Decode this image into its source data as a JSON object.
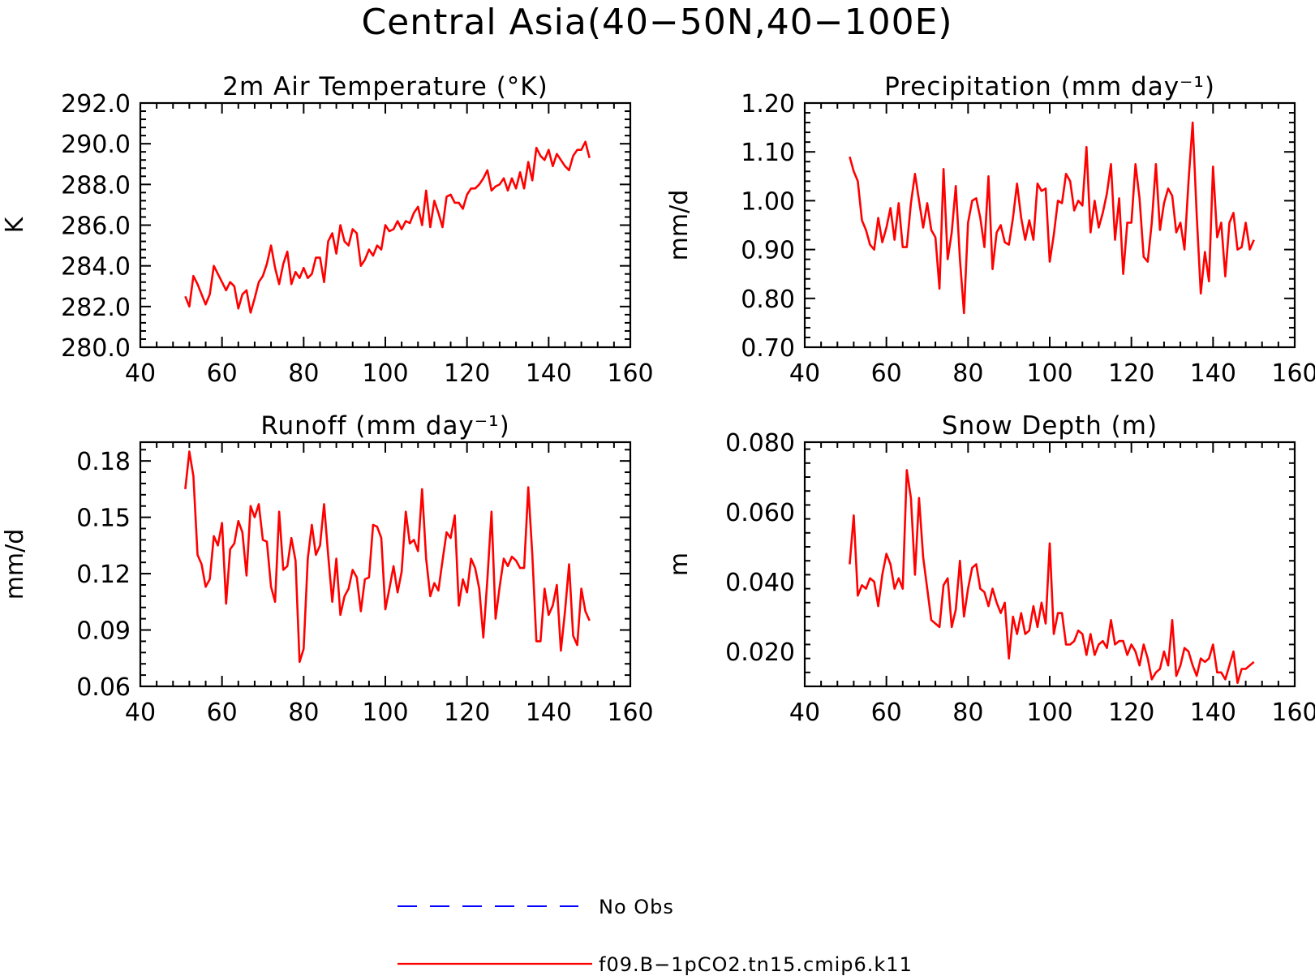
{
  "title": "Central Asia(40−50N,40−100E)",
  "legend": [
    {
      "label": "No Obs",
      "color": "#0000ff",
      "style": "dashed"
    },
    {
      "label": "f09.B−1pCO2.tn15.cmip6.k11",
      "color": "#ff0000",
      "style": "solid"
    }
  ],
  "chart_data": [
    {
      "type": "line",
      "title": "2m Air Temperature (°K)",
      "xlabel": "",
      "ylabel": "K",
      "xlim": [
        40,
        160
      ],
      "ylim": [
        280,
        292
      ],
      "xticks": [
        40,
        60,
        80,
        100,
        120,
        140,
        160
      ],
      "yticks": [
        280,
        282,
        284,
        286,
        288,
        290,
        292
      ],
      "yticklabels": [
        "280.0",
        "282.0",
        "284.0",
        "286.0",
        "288.0",
        "290.0",
        "292.0"
      ],
      "x_start": 51,
      "series": [
        {
          "name": "f09.B−1pCO2.tn15.cmip6.k11",
          "color": "#ff0000",
          "values": [
            282.5,
            282.0,
            283.5,
            283.1,
            282.6,
            282.1,
            282.6,
            284.0,
            283.6,
            283.2,
            282.8,
            283.2,
            283.0,
            281.9,
            282.6,
            282.8,
            281.7,
            282.4,
            283.2,
            283.5,
            284.1,
            285.0,
            283.9,
            283.1,
            284.1,
            284.7,
            283.1,
            283.7,
            283.4,
            283.9,
            283.4,
            283.6,
            284.4,
            284.4,
            283.2,
            285.2,
            285.6,
            284.6,
            286.0,
            285.2,
            285.0,
            285.8,
            285.6,
            284.0,
            284.3,
            284.8,
            284.5,
            285.0,
            284.8,
            286.0,
            285.7,
            285.8,
            286.2,
            285.8,
            286.2,
            286.1,
            286.6,
            286.9,
            286.0,
            287.7,
            285.9,
            287.2,
            286.6,
            285.9,
            287.4,
            287.5,
            287.1,
            287.1,
            286.8,
            287.5,
            287.8,
            287.8,
            288.0,
            288.3,
            288.7,
            287.7,
            287.9,
            288.0,
            288.3,
            287.7,
            288.3,
            287.8,
            288.6,
            287.8,
            289.1,
            288.2,
            289.8,
            289.4,
            289.2,
            289.7,
            288.9,
            289.5,
            289.2,
            288.9,
            288.7,
            289.4,
            289.7,
            289.7,
            290.1,
            289.3
          ]
        }
      ]
    },
    {
      "type": "line",
      "title": "Precipitation (mm day⁻¹)",
      "xlabel": "",
      "ylabel": "mm/d",
      "xlim": [
        40,
        160
      ],
      "ylim": [
        0.7,
        1.2
      ],
      "xticks": [
        40,
        60,
        80,
        100,
        120,
        140,
        160
      ],
      "yticks": [
        0.7,
        0.8,
        0.9,
        1.0,
        1.1,
        1.2
      ],
      "yticklabels": [
        "0.70",
        "0.80",
        "0.90",
        "1.00",
        "1.10",
        "1.20"
      ],
      "x_start": 51,
      "series": [
        {
          "name": "f09.B−1pCO2.tn15.cmip6.k11",
          "color": "#ff0000",
          "values": [
            1.09,
            1.06,
            1.04,
            0.96,
            0.94,
            0.91,
            0.9,
            0.965,
            0.915,
            0.945,
            0.985,
            0.92,
            0.995,
            0.905,
            0.905,
            0.995,
            1.055,
            1.0,
            0.945,
            0.995,
            0.94,
            0.925,
            0.82,
            1.065,
            0.88,
            0.935,
            1.03,
            0.88,
            0.77,
            0.955,
            1.0,
            1.005,
            0.965,
            0.905,
            1.05,
            0.86,
            0.935,
            0.95,
            0.915,
            0.91,
            0.965,
            1.035,
            0.965,
            0.92,
            0.96,
            0.92,
            1.035,
            1.02,
            1.025,
            0.875,
            0.93,
            1.0,
            0.995,
            1.055,
            1.04,
            0.98,
            1.0,
            0.99,
            1.11,
            0.935,
            1.0,
            0.945,
            0.975,
            1.015,
            1.075,
            0.92,
            1.005,
            0.85,
            0.955,
            0.955,
            1.075,
            1.005,
            0.885,
            0.875,
            0.955,
            1.075,
            0.94,
            0.995,
            1.025,
            1.01,
            0.935,
            0.955,
            0.9,
            1.04,
            1.16,
            0.97,
            0.81,
            0.895,
            0.835,
            1.07,
            0.925,
            0.955,
            0.845,
            0.955,
            0.975,
            0.9,
            0.905,
            0.955,
            0.9,
            0.92
          ]
        }
      ]
    },
    {
      "type": "line",
      "title": "Runoff (mm day⁻¹)",
      "xlabel": "",
      "ylabel": "mm/d",
      "xlim": [
        40,
        160
      ],
      "ylim": [
        0.06,
        0.19
      ],
      "xticks": [
        40,
        60,
        80,
        100,
        120,
        140,
        160
      ],
      "yticks": [
        0.06,
        0.09,
        0.12,
        0.15,
        0.18
      ],
      "yticklabels": [
        "0.06",
        "0.09",
        "0.12",
        "0.15",
        "0.18"
      ],
      "x_start": 51,
      "series": [
        {
          "name": "f09.B−1pCO2.tn15.cmip6.k11",
          "color": "#ff0000",
          "values": [
            0.165,
            0.185,
            0.172,
            0.13,
            0.125,
            0.113,
            0.117,
            0.14,
            0.135,
            0.147,
            0.104,
            0.133,
            0.136,
            0.148,
            0.142,
            0.119,
            0.156,
            0.15,
            0.157,
            0.138,
            0.137,
            0.113,
            0.105,
            0.153,
            0.122,
            0.124,
            0.139,
            0.127,
            0.073,
            0.08,
            0.128,
            0.146,
            0.13,
            0.135,
            0.157,
            0.13,
            0.105,
            0.128,
            0.098,
            0.108,
            0.112,
            0.122,
            0.118,
            0.1,
            0.117,
            0.118,
            0.146,
            0.145,
            0.139,
            0.101,
            0.112,
            0.124,
            0.11,
            0.121,
            0.153,
            0.136,
            0.138,
            0.132,
            0.165,
            0.128,
            0.108,
            0.115,
            0.111,
            0.127,
            0.142,
            0.139,
            0.151,
            0.103,
            0.117,
            0.11,
            0.128,
            0.123,
            0.112,
            0.086,
            0.117,
            0.153,
            0.096,
            0.113,
            0.128,
            0.124,
            0.129,
            0.127,
            0.123,
            0.123,
            0.166,
            0.13,
            0.084,
            0.084,
            0.112,
            0.098,
            0.103,
            0.114,
            0.079,
            0.1,
            0.125,
            0.087,
            0.082,
            0.112,
            0.1,
            0.095
          ]
        }
      ]
    },
    {
      "type": "line",
      "title": "Snow Depth (m)",
      "xlabel": "",
      "ylabel": "m",
      "xlim": [
        40,
        160
      ],
      "ylim": [
        0.01,
        0.08
      ],
      "xticks": [
        40,
        60,
        80,
        100,
        120,
        140,
        160
      ],
      "yticks": [
        0.02,
        0.04,
        0.06,
        0.08
      ],
      "yticklabels": [
        "0.020",
        "0.040",
        "0.060",
        "0.080"
      ],
      "x_start": 51,
      "series": [
        {
          "name": "f09.B−1pCO2.tn15.cmip6.k11",
          "color": "#ff0000",
          "values": [
            0.045,
            0.059,
            0.036,
            0.039,
            0.038,
            0.041,
            0.04,
            0.033,
            0.042,
            0.048,
            0.045,
            0.038,
            0.041,
            0.038,
            0.072,
            0.064,
            0.042,
            0.064,
            0.047,
            0.038,
            0.029,
            0.028,
            0.027,
            0.039,
            0.041,
            0.027,
            0.032,
            0.046,
            0.03,
            0.038,
            0.044,
            0.045,
            0.038,
            0.037,
            0.033,
            0.038,
            0.034,
            0.031,
            0.034,
            0.018,
            0.03,
            0.025,
            0.031,
            0.025,
            0.026,
            0.033,
            0.027,
            0.034,
            0.028,
            0.051,
            0.025,
            0.031,
            0.031,
            0.022,
            0.022,
            0.023,
            0.026,
            0.025,
            0.019,
            0.025,
            0.019,
            0.022,
            0.023,
            0.021,
            0.029,
            0.022,
            0.023,
            0.023,
            0.019,
            0.022,
            0.02,
            0.016,
            0.022,
            0.018,
            0.012,
            0.014,
            0.015,
            0.02,
            0.016,
            0.029,
            0.013,
            0.016,
            0.021,
            0.02,
            0.016,
            0.013,
            0.018,
            0.017,
            0.018,
            0.022,
            0.014,
            0.014,
            0.012,
            0.016,
            0.02,
            0.011,
            0.015,
            0.015,
            0.016,
            0.017
          ]
        }
      ]
    }
  ]
}
